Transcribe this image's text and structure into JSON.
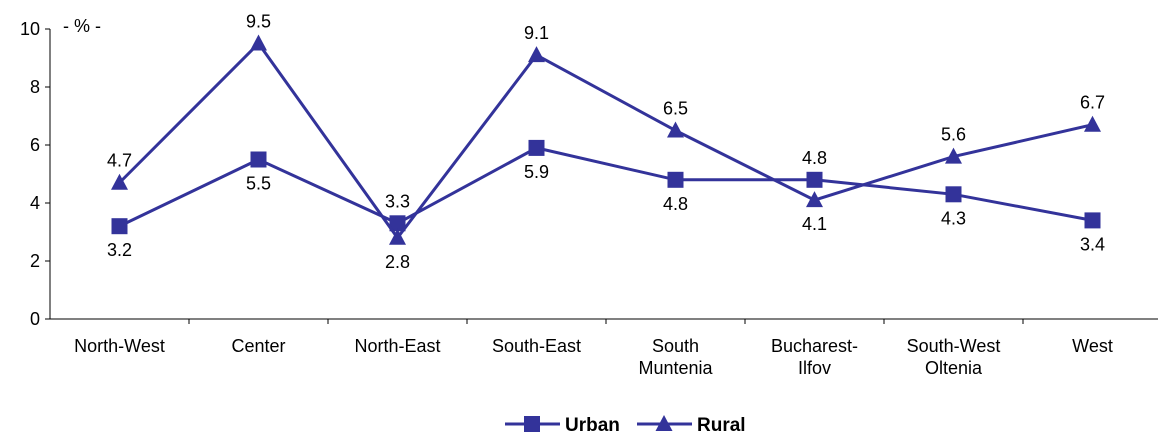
{
  "chart_data": {
    "type": "line",
    "unit_label": "- % -",
    "categories": [
      [
        "North-West"
      ],
      [
        "Center"
      ],
      [
        "North-East"
      ],
      [
        "South-East"
      ],
      [
        "South",
        "Muntenia"
      ],
      [
        "Bucharest-",
        "Ilfov"
      ],
      [
        "South-West",
        "Oltenia"
      ],
      [
        "West"
      ]
    ],
    "ylim": [
      0,
      10
    ],
    "yticks": [
      0,
      2,
      4,
      6,
      8,
      10
    ],
    "grid": false,
    "legend_position": "bottom-center",
    "series": [
      {
        "name": "Urban",
        "marker": "square",
        "color": "#33339a",
        "values": [
          3.2,
          5.5,
          3.3,
          5.9,
          4.8,
          4.8,
          4.3,
          3.4
        ],
        "labels": [
          "3.2",
          "5.5",
          "3.3",
          "5.9",
          "4.8",
          "4.8",
          "4.3",
          "3.4"
        ]
      },
      {
        "name": "Rural",
        "marker": "triangle",
        "color": "#33339a",
        "values": [
          4.7,
          9.5,
          2.8,
          9.1,
          6.5,
          4.1,
          5.6,
          6.7
        ],
        "labels": [
          "4.7",
          "9.5",
          "2.8",
          "9.1",
          "6.5",
          "4.1",
          "5.6",
          "6.7"
        ]
      }
    ]
  }
}
